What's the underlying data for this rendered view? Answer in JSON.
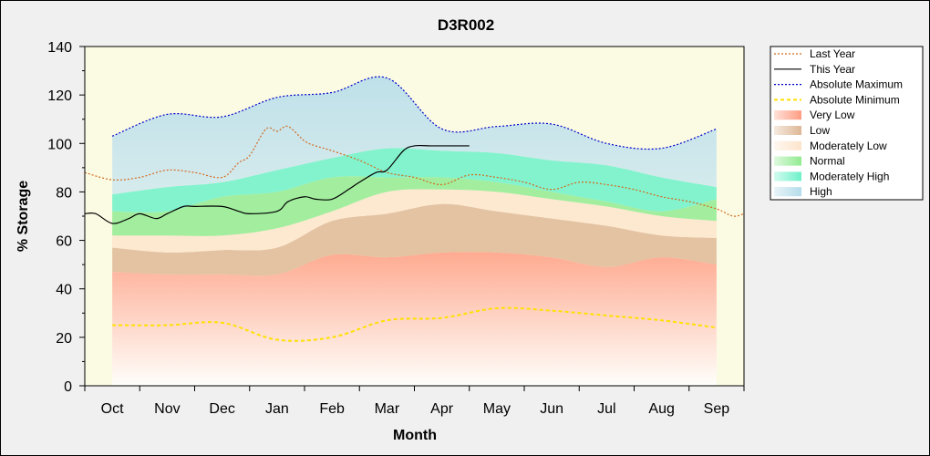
{
  "chart_data": {
    "type": "area",
    "title": "D3R002",
    "xlabel": "Month",
    "ylabel": "% Storage",
    "ylim": [
      0,
      140
    ],
    "y_ticks": [
      0,
      20,
      40,
      60,
      80,
      100,
      120,
      140
    ],
    "x_range": [
      -0.5,
      11.5
    ],
    "x_band_range": [
      0,
      11
    ],
    "categories": [
      "Oct",
      "Nov",
      "Dec",
      "Jan",
      "Feb",
      "Mar",
      "Apr",
      "May",
      "Jun",
      "Jul",
      "Aug",
      "Sep"
    ],
    "grid": false,
    "legend_position": "right",
    "bands": [
      {
        "name": "Very Low",
        "color": "#ff9c82",
        "lower": [
          0,
          0,
          0,
          0,
          0,
          0,
          0,
          0,
          0,
          0,
          0,
          0
        ],
        "upper": [
          47,
          46,
          46,
          46,
          54,
          53,
          55,
          55,
          53,
          49,
          53,
          50
        ]
      },
      {
        "name": "Low",
        "color": "#deb896",
        "lower": [
          47,
          46,
          46,
          46,
          54,
          53,
          55,
          55,
          53,
          49,
          53,
          50
        ],
        "upper": [
          57,
          55,
          56,
          57,
          68,
          71,
          75,
          72,
          69,
          66,
          62,
          61
        ]
      },
      {
        "name": "Moderately Low",
        "color": "#fde4cc",
        "lower": [
          57,
          55,
          56,
          57,
          68,
          71,
          75,
          72,
          69,
          66,
          62,
          61
        ],
        "upper": [
          62,
          62,
          62,
          65,
          72,
          80,
          81,
          80,
          77,
          74,
          70,
          68
        ]
      },
      {
        "name": "Normal",
        "color": "#92eb92",
        "lower": [
          62,
          62,
          62,
          65,
          72,
          80,
          81,
          80,
          77,
          74,
          70,
          68
        ],
        "upper": [
          72,
          72,
          78,
          80,
          86,
          86,
          86,
          84,
          80,
          76,
          72,
          77
        ]
      },
      {
        "name": "Moderately High",
        "color": "#6df1c9",
        "lower": [
          72,
          72,
          78,
          80,
          86,
          86,
          86,
          84,
          80,
          76,
          72,
          77
        ],
        "upper": [
          79,
          82,
          84,
          89,
          94,
          98,
          97,
          96,
          93,
          91,
          86,
          82
        ]
      },
      {
        "name": "High",
        "color": "#b4dcea",
        "lower": [
          79,
          82,
          84,
          89,
          94,
          98,
          97,
          96,
          93,
          91,
          86,
          82
        ],
        "upper": [
          103,
          112,
          111,
          119,
          121,
          127,
          106,
          107,
          108,
          100,
          98,
          106
        ]
      }
    ],
    "series": [
      {
        "name": "Last Year",
        "color": "#d2691e",
        "style": "dotted",
        "x": [
          -0.5,
          0,
          0.5,
          1,
          1.5,
          2,
          2.3,
          2.5,
          2.8,
          3,
          3.2,
          3.5,
          3.7,
          4,
          4.5,
          5,
          5.5,
          6,
          6.5,
          7,
          7.5,
          8,
          8.5,
          9,
          9.5,
          10,
          10.5,
          11,
          11.3,
          11.5
        ],
        "y": [
          88,
          85,
          86,
          89,
          88,
          86,
          92,
          95,
          106,
          105,
          107,
          101,
          99,
          97,
          93,
          88,
          86,
          83,
          87,
          86,
          84,
          81,
          84,
          83,
          81,
          78,
          76,
          73,
          70,
          71
        ]
      },
      {
        "name": "This Year",
        "color": "#000000",
        "style": "solid",
        "x": [
          -0.5,
          -0.3,
          0,
          0.3,
          0.5,
          0.8,
          1,
          1.3,
          1.5,
          2,
          2.3,
          2.5,
          3,
          3.2,
          3.5,
          3.7,
          4,
          4.3,
          4.5,
          4.8,
          5,
          5.3,
          5.5,
          5.8,
          6,
          6.5
        ],
        "y": [
          71,
          71,
          67,
          69,
          71,
          69,
          71,
          74,
          74,
          74,
          72,
          71,
          72,
          76,
          78,
          77,
          77,
          81,
          84,
          88,
          89,
          97,
          99,
          99,
          99,
          99
        ]
      },
      {
        "name": "Absolute Maximum",
        "color": "#0000c8",
        "style": "dotted",
        "x": [
          0,
          1,
          2,
          3,
          4,
          5,
          6,
          7,
          8,
          9,
          10,
          11
        ],
        "y": [
          103,
          112,
          111,
          119,
          121,
          127,
          106,
          107,
          108,
          100,
          98,
          106
        ]
      },
      {
        "name": "Absolute Minimum",
        "color": "#ffe000",
        "style": "dashed",
        "x": [
          0,
          1,
          2,
          3,
          4,
          5,
          6,
          7,
          8,
          9,
          10,
          11
        ],
        "y": [
          25,
          25,
          26,
          19,
          20,
          27,
          28,
          32,
          31,
          29,
          27,
          24
        ]
      }
    ]
  }
}
